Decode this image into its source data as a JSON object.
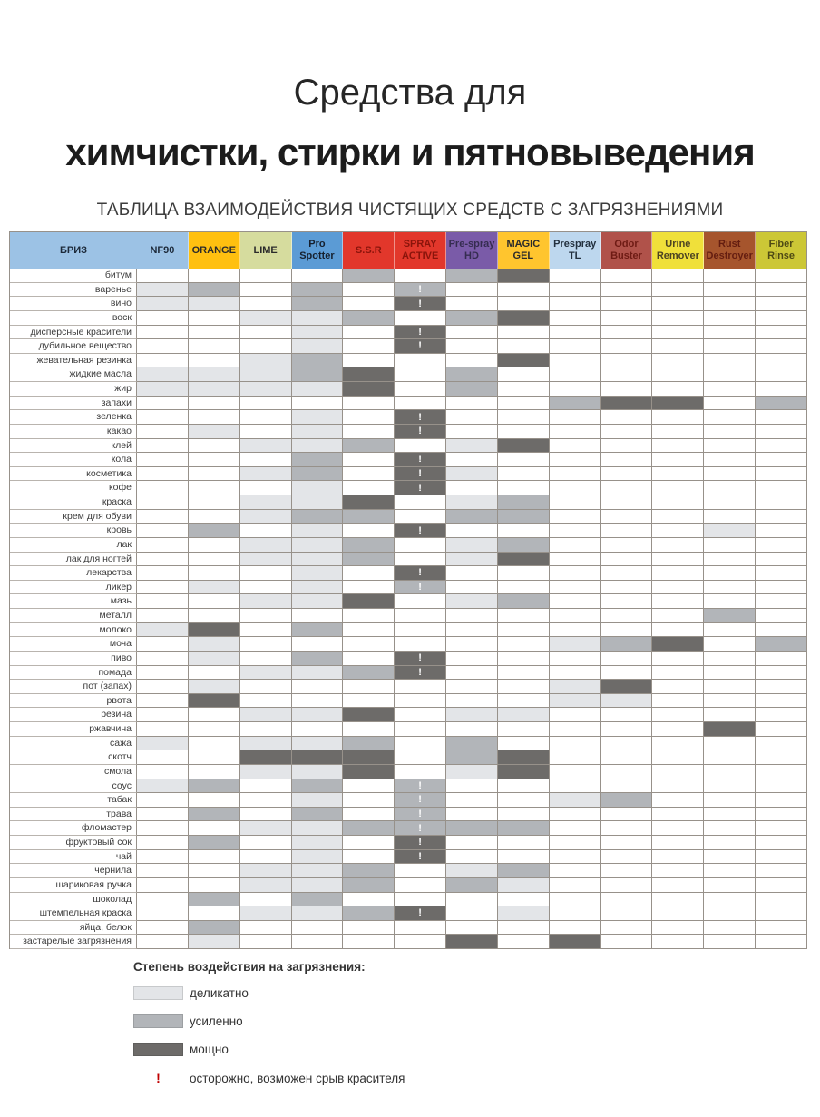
{
  "title": {
    "line1": "Средства для",
    "line2": "химчистки, стирки и пятновыведения",
    "subtitle": "ТАБЛИЦА ВЗАИМОДЕЙСТВИЯ ЧИСТЯЩИХ СРЕДСТВ С ЗАГРЯЗНЕНИЯМИ"
  },
  "chart_data": {
    "type": "heatmap",
    "title": "ТАБЛИЦА ВЗАИМОДЕЙСТВИЯ ЧИСТЯЩИХ СРЕДСТВ С ЗАГРЯЗНЕНИЯМИ",
    "value_scale": {
      "1": "деликатно",
      "2": "усиленно",
      "3": "мощно",
      "!": "осторожно, возможен срыв красителя"
    },
    "corner": {
      "label": "БРИЗ",
      "bg": "#9cc2e5",
      "fg": "#1d2a3a"
    },
    "columns": [
      {
        "label": "NF90",
        "bg": "#9cc2e5",
        "fg": "#1d2a3a"
      },
      {
        "label": "ORANGE",
        "bg": "#ffc010",
        "fg": "#2b2b2b"
      },
      {
        "label": "LIME",
        "bg": "#d6dc9e",
        "fg": "#2b2b2b"
      },
      {
        "label": "Pro Spotter",
        "bg": "#5b9bd5",
        "fg": "#16202e"
      },
      {
        "label": "S.S.R",
        "bg": "#e2372b",
        "fg": "#8a140b"
      },
      {
        "label": "SPRAY ACTIVE",
        "bg": "#e2372b",
        "fg": "#8a140b"
      },
      {
        "label": "Pre-spray HD",
        "bg": "#7a5ba8",
        "fg": "#352c50"
      },
      {
        "label": "MAGIC GEL",
        "bg": "#ffc52e",
        "fg": "#2b2b2b"
      },
      {
        "label": "Prespray TL",
        "bg": "#bdd7ee",
        "fg": "#22303e"
      },
      {
        "label": "Odor Buster",
        "bg": "#b0524a",
        "fg": "#6e1b14"
      },
      {
        "label": "Urine Remover",
        "bg": "#f0e03a",
        "fg": "#4c4322"
      },
      {
        "label": "Rust Destroyer",
        "bg": "#a6552d",
        "fg": "#641d10"
      },
      {
        "label": "Fiber Rinse",
        "bg": "#ccc736",
        "fg": "#4e4a14"
      }
    ],
    "rows": [
      {
        "label": "битум",
        "v": [
          "",
          "",
          "",
          "",
          "2",
          "",
          "2",
          "3",
          "",
          "",
          "",
          "",
          ""
        ]
      },
      {
        "label": "варенье",
        "v": [
          "1",
          "2",
          "",
          "2",
          "",
          "2!",
          "",
          "",
          "",
          "",
          "",
          "",
          ""
        ]
      },
      {
        "label": "вино",
        "v": [
          "1",
          "1",
          "",
          "2",
          "",
          "3!",
          "",
          "",
          "",
          "",
          "",
          "",
          ""
        ]
      },
      {
        "label": "воск",
        "v": [
          "",
          "",
          "1",
          "1",
          "2",
          "",
          "2",
          "3",
          "",
          "",
          "",
          "",
          ""
        ]
      },
      {
        "label": "дисперсные красители",
        "v": [
          "",
          "",
          "",
          "1",
          "",
          "3!",
          "",
          "",
          "",
          "",
          "",
          "",
          ""
        ]
      },
      {
        "label": "дубильное вещество",
        "v": [
          "",
          "",
          "",
          "1",
          "",
          "3!",
          "",
          "",
          "",
          "",
          "",
          "",
          ""
        ]
      },
      {
        "label": "жевательная резинка",
        "v": [
          "",
          "",
          "1",
          "2",
          "",
          "",
          "",
          "3",
          "",
          "",
          "",
          "",
          ""
        ]
      },
      {
        "label": "жидкие масла",
        "v": [
          "1",
          "1",
          "1",
          "2",
          "3",
          "",
          "2",
          "",
          "",
          "",
          "",
          "",
          ""
        ]
      },
      {
        "label": "жир",
        "v": [
          "1",
          "1",
          "1",
          "1",
          "3",
          "",
          "2",
          "",
          "",
          "",
          "",
          "",
          ""
        ]
      },
      {
        "label": "запахи",
        "v": [
          "",
          "",
          "",
          "",
          "",
          "",
          "",
          "",
          "2",
          "3",
          "3",
          "",
          "2"
        ]
      },
      {
        "label": "зеленка",
        "v": [
          "",
          "",
          "",
          "1",
          "",
          "3!",
          "",
          "",
          "",
          "",
          "",
          "",
          ""
        ]
      },
      {
        "label": "какао",
        "v": [
          "",
          "1",
          "",
          "1",
          "",
          "3!",
          "",
          "",
          "",
          "",
          "",
          "",
          ""
        ]
      },
      {
        "label": "клей",
        "v": [
          "",
          "",
          "1",
          "1",
          "2",
          "",
          "1",
          "3",
          "",
          "",
          "",
          "",
          ""
        ]
      },
      {
        "label": "кола",
        "v": [
          "",
          "",
          "",
          "2",
          "",
          "3!",
          "",
          "",
          "",
          "",
          "",
          "",
          ""
        ]
      },
      {
        "label": "косметика",
        "v": [
          "",
          "",
          "1",
          "2",
          "",
          "3!",
          "1",
          "",
          "",
          "",
          "",
          "",
          ""
        ]
      },
      {
        "label": "кофе",
        "v": [
          "",
          "",
          "",
          "1",
          "",
          "3!",
          "",
          "",
          "",
          "",
          "",
          "",
          ""
        ]
      },
      {
        "label": "краска",
        "v": [
          "",
          "",
          "1",
          "1",
          "3",
          "",
          "1",
          "2",
          "",
          "",
          "",
          "",
          ""
        ]
      },
      {
        "label": "крем для обуви",
        "v": [
          "",
          "",
          "1",
          "2",
          "2",
          "",
          "2",
          "2",
          "",
          "",
          "",
          "",
          ""
        ]
      },
      {
        "label": "кровь",
        "v": [
          "",
          "2",
          "",
          "1",
          "",
          "3!",
          "",
          "",
          "",
          "",
          "",
          "1",
          ""
        ]
      },
      {
        "label": "лак",
        "v": [
          "",
          "",
          "1",
          "1",
          "2",
          "",
          "1",
          "2",
          "",
          "",
          "",
          "",
          ""
        ]
      },
      {
        "label": "лак для ногтей",
        "v": [
          "",
          "",
          "1",
          "1",
          "2",
          "",
          "1",
          "3",
          "",
          "",
          "",
          "",
          ""
        ]
      },
      {
        "label": "лекарства",
        "v": [
          "",
          "",
          "",
          "1",
          "",
          "3!",
          "",
          "",
          "",
          "",
          "",
          "",
          ""
        ]
      },
      {
        "label": "ликер",
        "v": [
          "",
          "1",
          "",
          "1",
          "",
          "2!",
          "",
          "",
          "",
          "",
          "",
          "",
          ""
        ]
      },
      {
        "label": "мазь",
        "v": [
          "",
          "",
          "1",
          "1",
          "3",
          "",
          "1",
          "2",
          "",
          "",
          "",
          "",
          ""
        ]
      },
      {
        "label": "металл",
        "v": [
          "",
          "",
          "",
          "",
          "",
          "",
          "",
          "",
          "",
          "",
          "",
          "2",
          ""
        ]
      },
      {
        "label": "молоко",
        "v": [
          "1",
          "3",
          "",
          "2",
          "",
          "",
          "",
          "",
          "",
          "",
          "",
          "",
          ""
        ]
      },
      {
        "label": "моча",
        "v": [
          "",
          "1",
          "",
          "",
          "",
          "",
          "",
          "",
          "1",
          "2",
          "3",
          "",
          "2"
        ]
      },
      {
        "label": "пиво",
        "v": [
          "",
          "1",
          "",
          "2",
          "",
          "3!",
          "",
          "",
          "",
          "",
          "",
          "",
          ""
        ]
      },
      {
        "label": "помада",
        "v": [
          "",
          "",
          "1",
          "1",
          "2",
          "3!",
          "",
          "",
          "",
          "",
          "",
          "",
          ""
        ]
      },
      {
        "label": "пот (запах)",
        "v": [
          "",
          "1",
          "",
          "",
          "",
          "",
          "",
          "",
          "1",
          "3",
          "",
          "",
          ""
        ]
      },
      {
        "label": "рвота",
        "v": [
          "",
          "3",
          "",
          "",
          "",
          "",
          "",
          "",
          "1",
          "1",
          "",
          "",
          ""
        ]
      },
      {
        "label": "резина",
        "v": [
          "",
          "",
          "1",
          "1",
          "3",
          "",
          "1",
          "1",
          "",
          "",
          "",
          "",
          ""
        ]
      },
      {
        "label": "ржавчина",
        "v": [
          "",
          "",
          "",
          "",
          "",
          "",
          "",
          "",
          "",
          "",
          "",
          "3",
          ""
        ]
      },
      {
        "label": "сажа",
        "v": [
          "1",
          "",
          "1",
          "1",
          "2",
          "",
          "2",
          "",
          "",
          "",
          "",
          "",
          ""
        ]
      },
      {
        "label": "скотч",
        "v": [
          "",
          "",
          "3",
          "3",
          "3",
          "",
          "2",
          "3",
          "",
          "",
          "",
          "",
          ""
        ]
      },
      {
        "label": "смола",
        "v": [
          "",
          "",
          "1",
          "1",
          "3",
          "",
          "1",
          "3",
          "",
          "",
          "",
          "",
          ""
        ]
      },
      {
        "label": "соус",
        "v": [
          "1",
          "2",
          "",
          "2",
          "",
          "2!",
          "",
          "",
          "",
          "",
          "",
          "",
          ""
        ]
      },
      {
        "label": "табак",
        "v": [
          "",
          "",
          "",
          "1",
          "",
          "2!",
          "",
          "",
          "1",
          "2",
          "",
          "",
          ""
        ]
      },
      {
        "label": "трава",
        "v": [
          "",
          "2",
          "",
          "2",
          "",
          "2!",
          "",
          "",
          "",
          "",
          "",
          "",
          ""
        ]
      },
      {
        "label": "фломастер",
        "v": [
          "",
          "",
          "1",
          "1",
          "2",
          "2!",
          "2",
          "2",
          "",
          "",
          "",
          "",
          ""
        ]
      },
      {
        "label": "фруктовый сок",
        "v": [
          "",
          "2",
          "",
          "1",
          "",
          "3!",
          "",
          "",
          "",
          "",
          "",
          "",
          ""
        ]
      },
      {
        "label": "чай",
        "v": [
          "",
          "",
          "",
          "1",
          "",
          "3!",
          "",
          "",
          "",
          "",
          "",
          "",
          ""
        ]
      },
      {
        "label": "чернила",
        "v": [
          "",
          "",
          "1",
          "1",
          "2",
          "",
          "1",
          "2",
          "",
          "",
          "",
          "",
          ""
        ]
      },
      {
        "label": "шариковая ручка",
        "v": [
          "",
          "",
          "1",
          "1",
          "2",
          "",
          "2",
          "1",
          "",
          "",
          "",
          "",
          ""
        ]
      },
      {
        "label": "шоколад",
        "v": [
          "",
          "2",
          "",
          "2",
          "",
          "",
          "",
          "",
          "",
          "",
          "",
          "",
          ""
        ]
      },
      {
        "label": "штемпельная краска",
        "v": [
          "",
          "",
          "1",
          "1",
          "2",
          "3!",
          "",
          "1",
          "",
          "",
          "",
          "",
          ""
        ]
      },
      {
        "label": "яйца, белок",
        "v": [
          "",
          "2",
          "",
          "",
          "",
          "",
          "",
          "",
          "",
          "",
          "",
          "",
          ""
        ]
      },
      {
        "label": "застарелые загрязнения",
        "v": [
          "",
          "1",
          "",
          "",
          "",
          "",
          "3",
          "",
          "3",
          "",
          "",
          "",
          ""
        ]
      }
    ]
  },
  "legend": {
    "title": "Степень воздействия на загрязнения:",
    "items": [
      {
        "level": "1",
        "label": "деликатно"
      },
      {
        "level": "2",
        "label": "усиленно"
      },
      {
        "level": "3",
        "label": "мощно"
      }
    ],
    "warning": {
      "symbol": "!",
      "label": "осторожно, возможен срыв красителя"
    }
  },
  "colors": {
    "level1": "#e3e5e8",
    "level2": "#b2b5b9",
    "level3": "#6d6b69",
    "warning": "#c00000",
    "grid_line": "#97918a"
  }
}
